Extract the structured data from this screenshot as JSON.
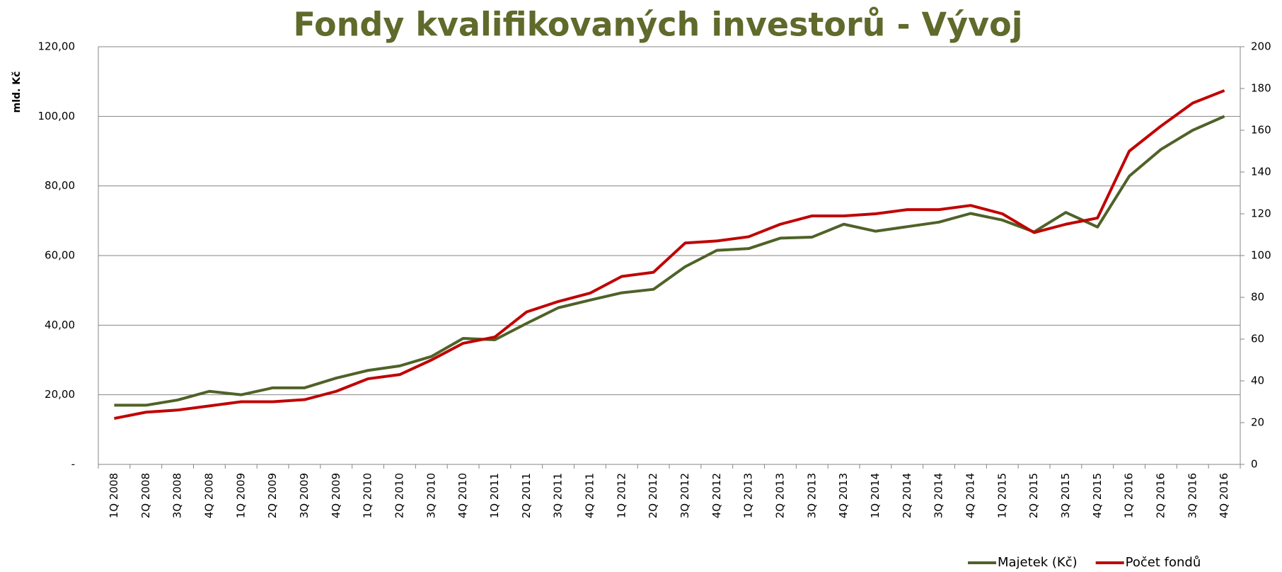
{
  "chart_data": {
    "type": "line",
    "title": "Fondy kvalifikovaných investorů - Vývoj",
    "y_label": "mld. Kč",
    "categories": [
      "1Q 2008",
      "2Q 2008",
      "3Q 2008",
      "4Q 2008",
      "1Q 2009",
      "2Q 2009",
      "3Q 2009",
      "4Q 2009",
      "1Q 2010",
      "2Q 2010",
      "3Q 2010",
      "4Q 2010",
      "1Q 2011",
      "2Q 2011",
      "3Q 2011",
      "4Q 2011",
      "1Q 2012",
      "2Q 2012",
      "3Q 2012",
      "4Q 2012",
      "1Q 2013",
      "2Q 2013",
      "3Q 2013",
      "4Q 2013",
      "1Q 2014",
      "2Q 2014",
      "3Q 2014",
      "4Q 2014",
      "1Q 2015",
      "2Q 2015",
      "3Q 2015",
      "4Q 2015",
      "1Q 2016",
      "2Q 2016",
      "3Q 2016",
      "4Q 2016"
    ],
    "series": [
      {
        "name": "Majetek (Kč)",
        "color": "#4f6228",
        "values": [
          17,
          17,
          18.5,
          21,
          20,
          22,
          22,
          24.8,
          27,
          28.3,
          31,
          36.2,
          35.8,
          40.5,
          45,
          47.2,
          49.3,
          50.3,
          56.8,
          61.5,
          62,
          65,
          65.3,
          69,
          67,
          68.3,
          69.6,
          72.1,
          70.2,
          66.8,
          72.4,
          68.2,
          82.8,
          90.5,
          96,
          100
        ]
      },
      {
        "name": "Počet fondů",
        "color": "#c00000",
        "axis": "y2",
        "values": [
          22,
          25,
          26,
          28,
          30,
          30,
          31,
          35,
          41,
          43,
          50,
          58,
          61,
          73,
          78,
          82,
          90,
          92,
          106,
          107,
          109,
          115,
          119,
          119,
          120,
          122,
          122,
          124,
          120,
          111,
          115,
          118,
          150,
          162,
          173,
          179
        ]
      }
    ],
    "ylim": [
      0,
      120
    ],
    "yticks": [
      {
        "value": 0,
        "label": "-"
      },
      {
        "value": 20,
        "label": "20,00"
      },
      {
        "value": 40,
        "label": "40,00"
      },
      {
        "value": 60,
        "label": "60,00"
      },
      {
        "value": 80,
        "label": "80,00"
      },
      {
        "value": 100,
        "label": "100,00"
      },
      {
        "value": 120,
        "label": "120,00"
      }
    ],
    "y2lim": [
      0,
      200
    ],
    "y2ticks": [
      0,
      20,
      40,
      60,
      80,
      100,
      120,
      140,
      160,
      180,
      200
    ],
    "grid": true,
    "legend": "bottom-right"
  }
}
